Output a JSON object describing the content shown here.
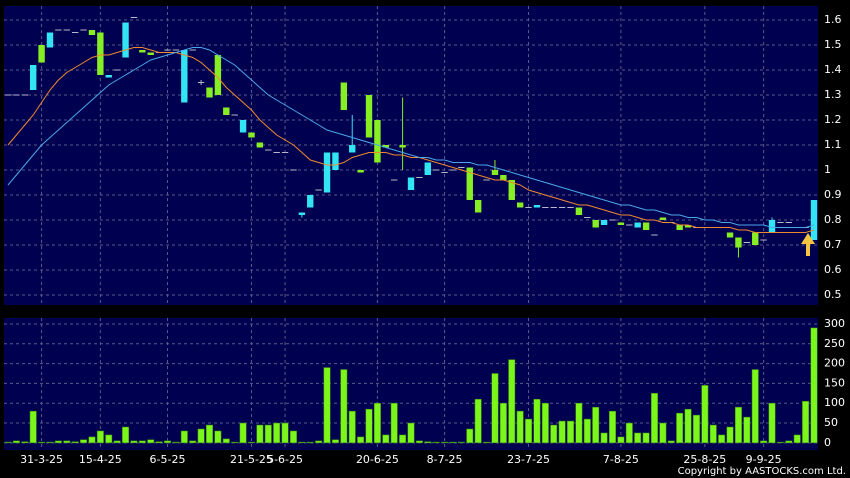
{
  "chart_data": {
    "type": "candlestick",
    "copyright": "Copyright by AASTOCKS.com Ltd.",
    "grid": true,
    "categories": [
      null,
      null,
      null,
      null,
      "31-3-25",
      null,
      null,
      null,
      null,
      null,
      null,
      "15-4-25",
      null,
      null,
      null,
      null,
      null,
      null,
      null,
      "6-5-25",
      null,
      null,
      null,
      null,
      null,
      null,
      null,
      null,
      null,
      "21-5-25",
      null,
      null,
      null,
      "5-6-25",
      null,
      null,
      null,
      null,
      null,
      null,
      null,
      null,
      null,
      null,
      "20-6-25",
      null,
      null,
      null,
      null,
      null,
      null,
      null,
      "8-7-25",
      null,
      null,
      null,
      null,
      null,
      null,
      null,
      null,
      null,
      "23-7-25",
      null,
      null,
      null,
      null,
      null,
      null,
      null,
      null,
      null,
      null,
      "7-8-25",
      null,
      null,
      null,
      null,
      null,
      null,
      null,
      null,
      null,
      "25-8-25",
      null,
      null,
      null,
      null,
      null,
      null,
      "9-9-25",
      null,
      null,
      null,
      null,
      null,
      null
    ],
    "open": [
      1.3,
      1.3,
      1.3,
      1.32,
      1.5,
      1.49,
      1.56,
      1.56,
      1.55,
      1.56,
      1.56,
      1.55,
      1.37,
      1.4,
      1.45,
      1.61,
      1.48,
      1.47,
      1.47,
      1.48,
      1.48,
      1.27,
      1.48,
      1.35,
      1.33,
      1.46,
      1.25,
      1.22,
      1.15,
      1.15,
      1.11,
      1.08,
      1.07,
      1.07,
      1.0,
      0.82,
      0.85,
      0.92,
      0.91,
      1.0,
      1.35,
      1.07,
      1.0,
      1.3,
      1.2,
      1.1,
      0.96,
      1.1,
      0.92,
      0.97,
      0.98,
      1.0,
      0.99,
      1.0,
      1.01,
      1.01,
      0.88,
      0.96,
      1.0,
      0.98,
      0.96,
      0.87,
      0.85,
      0.85,
      0.85,
      0.85,
      0.85,
      0.85,
      0.85,
      0.81,
      0.8,
      0.78,
      0.8,
      0.79,
      0.78,
      0.77,
      0.79,
      0.74,
      0.81,
      0.79,
      0.78,
      0.78,
      0.77,
      0.77,
      0.77,
      0.77,
      0.75,
      0.73,
      0.71,
      0.75,
      0.72,
      0.75,
      0.79,
      0.79,
      0.77,
      0.77,
      0.72
    ],
    "high": [
      1.3,
      1.3,
      1.3,
      1.42,
      1.5,
      1.55,
      1.56,
      1.56,
      1.55,
      1.56,
      1.56,
      1.55,
      1.38,
      1.4,
      1.59,
      1.61,
      1.48,
      1.47,
      1.47,
      1.48,
      1.48,
      1.48,
      1.48,
      1.36,
      1.33,
      1.46,
      1.25,
      1.22,
      1.2,
      1.15,
      1.11,
      1.08,
      1.07,
      1.07,
      1.0,
      0.83,
      0.9,
      0.92,
      1.07,
      1.07,
      1.35,
      1.22,
      1.0,
      1.3,
      1.2,
      1.1,
      0.96,
      1.29,
      0.97,
      0.97,
      1.03,
      1.0,
      0.99,
      1.0,
      1.01,
      1.01,
      0.88,
      0.96,
      1.04,
      0.98,
      0.96,
      0.87,
      0.85,
      0.86,
      0.85,
      0.85,
      0.85,
      0.85,
      0.85,
      0.81,
      0.8,
      0.8,
      0.8,
      0.79,
      0.78,
      0.79,
      0.79,
      0.74,
      0.81,
      0.79,
      0.78,
      0.78,
      0.77,
      0.77,
      0.77,
      0.77,
      0.75,
      0.73,
      0.71,
      0.75,
      0.72,
      0.81,
      0.79,
      0.79,
      0.77,
      0.77,
      0.88
    ],
    "low": [
      1.3,
      1.3,
      1.3,
      1.32,
      1.43,
      1.49,
      1.56,
      1.56,
      1.55,
      1.56,
      1.54,
      1.38,
      1.37,
      1.4,
      1.45,
      1.61,
      1.47,
      1.46,
      1.47,
      1.48,
      1.48,
      1.27,
      1.48,
      1.34,
      1.29,
      1.3,
      1.22,
      1.22,
      1.15,
      1.13,
      1.09,
      1.08,
      1.07,
      1.07,
      1.0,
      0.81,
      0.85,
      0.92,
      0.91,
      1.0,
      1.24,
      1.07,
      0.99,
      1.13,
      1.03,
      1.09,
      0.96,
      1.0,
      0.92,
      0.97,
      0.98,
      1.0,
      0.99,
      1.0,
      1.01,
      0.88,
      0.83,
      0.96,
      0.98,
      0.96,
      0.88,
      0.85,
      0.85,
      0.85,
      0.85,
      0.85,
      0.85,
      0.85,
      0.82,
      0.81,
      0.77,
      0.78,
      0.8,
      0.78,
      0.78,
      0.77,
      0.76,
      0.74,
      0.8,
      0.79,
      0.76,
      0.77,
      0.77,
      0.77,
      0.77,
      0.77,
      0.73,
      0.65,
      0.71,
      0.7,
      0.72,
      0.75,
      0.79,
      0.79,
      0.77,
      0.77,
      0.72
    ],
    "close": [
      1.3,
      1.3,
      1.3,
      1.42,
      1.43,
      1.55,
      1.56,
      1.56,
      1.55,
      1.56,
      1.54,
      1.38,
      1.38,
      1.4,
      1.59,
      1.61,
      1.47,
      1.46,
      1.47,
      1.48,
      1.48,
      1.48,
      1.48,
      1.35,
      1.29,
      1.3,
      1.22,
      1.22,
      1.2,
      1.13,
      1.09,
      1.08,
      1.07,
      1.07,
      1.0,
      0.83,
      0.9,
      0.92,
      1.07,
      1.07,
      1.24,
      1.1,
      0.99,
      1.13,
      1.03,
      1.09,
      0.96,
      1.09,
      0.97,
      0.97,
      1.03,
      1.0,
      0.99,
      1.0,
      1.01,
      0.88,
      0.83,
      0.96,
      0.98,
      0.96,
      0.88,
      0.85,
      0.85,
      0.86,
      0.85,
      0.85,
      0.85,
      0.85,
      0.82,
      0.81,
      0.77,
      0.8,
      0.8,
      0.78,
      0.78,
      0.79,
      0.76,
      0.74,
      0.8,
      0.79,
      0.76,
      0.77,
      0.77,
      0.77,
      0.77,
      0.77,
      0.73,
      0.69,
      0.71,
      0.7,
      0.72,
      0.8,
      0.79,
      0.79,
      0.77,
      0.77,
      0.88
    ],
    "ma_short": {
      "color": "#f08a30",
      "values": [
        1.1,
        1.14,
        1.18,
        1.22,
        1.27,
        1.32,
        1.36,
        1.39,
        1.41,
        1.43,
        1.45,
        1.46,
        1.46,
        1.47,
        1.48,
        1.49,
        1.49,
        1.48,
        1.47,
        1.47,
        1.47,
        1.46,
        1.45,
        1.43,
        1.4,
        1.37,
        1.33,
        1.3,
        1.27,
        1.24,
        1.2,
        1.17,
        1.14,
        1.12,
        1.1,
        1.07,
        1.04,
        1.03,
        1.02,
        1.02,
        1.03,
        1.05,
        1.06,
        1.07,
        1.07,
        1.07,
        1.06,
        1.06,
        1.05,
        1.05,
        1.04,
        1.03,
        1.02,
        1.01,
        1.0,
        0.99,
        0.98,
        0.97,
        0.96,
        0.96,
        0.95,
        0.94,
        0.92,
        0.91,
        0.9,
        0.89,
        0.88,
        0.87,
        0.86,
        0.86,
        0.85,
        0.84,
        0.83,
        0.82,
        0.82,
        0.81,
        0.8,
        0.8,
        0.79,
        0.79,
        0.78,
        0.78,
        0.77,
        0.77,
        0.77,
        0.77,
        0.77,
        0.76,
        0.76,
        0.75,
        0.75,
        0.75,
        0.75,
        0.75,
        0.75,
        0.75,
        0.76
      ]
    },
    "ma_long": {
      "color": "#4aa8e8",
      "values": [
        0.94,
        0.98,
        1.02,
        1.06,
        1.1,
        1.13,
        1.16,
        1.19,
        1.22,
        1.25,
        1.28,
        1.31,
        1.34,
        1.36,
        1.38,
        1.4,
        1.42,
        1.44,
        1.45,
        1.46,
        1.47,
        1.48,
        1.49,
        1.49,
        1.48,
        1.46,
        1.44,
        1.42,
        1.39,
        1.36,
        1.33,
        1.3,
        1.28,
        1.26,
        1.24,
        1.22,
        1.2,
        1.18,
        1.16,
        1.15,
        1.14,
        1.13,
        1.12,
        1.11,
        1.1,
        1.09,
        1.08,
        1.07,
        1.06,
        1.05,
        1.05,
        1.04,
        1.04,
        1.03,
        1.03,
        1.03,
        1.02,
        1.02,
        1.01,
        1.0,
        0.99,
        0.98,
        0.97,
        0.96,
        0.95,
        0.94,
        0.93,
        0.92,
        0.91,
        0.9,
        0.89,
        0.88,
        0.87,
        0.86,
        0.86,
        0.85,
        0.84,
        0.84,
        0.83,
        0.82,
        0.82,
        0.81,
        0.81,
        0.8,
        0.8,
        0.79,
        0.79,
        0.78,
        0.78,
        0.78,
        0.78,
        0.77,
        0.77,
        0.77,
        0.77,
        0.77,
        0.78
      ]
    },
    "up_color": "#33e4f2",
    "down_color": "#86ee22",
    "flat_color": "#b8b8c8",
    "ylim": [
      0.46,
      1.656
    ],
    "yticks": [
      0.5,
      0.6,
      0.7,
      0.8,
      0.9,
      1,
      1.1,
      1.2,
      1.3,
      1.4,
      1.5,
      1.6
    ],
    "volume": {
      "color": "#7cf51a",
      "values": [
        2,
        5,
        3,
        80,
        2,
        2,
        5,
        5,
        3,
        8,
        15,
        30,
        20,
        5,
        40,
        5,
        5,
        8,
        3,
        5,
        2,
        30,
        5,
        35,
        45,
        30,
        10,
        2,
        50,
        2,
        45,
        45,
        50,
        50,
        30,
        2,
        2,
        5,
        190,
        8,
        185,
        80,
        15,
        85,
        100,
        20,
        100,
        20,
        50,
        5,
        3,
        2,
        2,
        2,
        2,
        35,
        110,
        2,
        175,
        100,
        210,
        80,
        60,
        110,
        100,
        45,
        55,
        55,
        100,
        60,
        90,
        25,
        80,
        15,
        50,
        25,
        25,
        125,
        50,
        5,
        75,
        85,
        70,
        145,
        45,
        20,
        40,
        90,
        65,
        185,
        5,
        100,
        2,
        5,
        20,
        105,
        290
      ]
    },
    "vol_ylim": [
      -18,
      315
    ],
    "vol_yticks": [
      0,
      50,
      100,
      150,
      200,
      250,
      300
    ]
  }
}
